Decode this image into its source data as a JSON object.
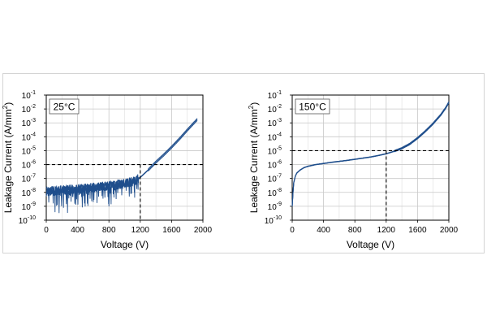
{
  "chart_data": [
    {
      "type": "line",
      "annotation": "25°C",
      "xlabel": "Voltage (V)",
      "ylabel_main": "Leakage Current (A/mm",
      "ylabel_sup": "2",
      "ylabel_end": ")",
      "xlim": [
        0,
        2000
      ],
      "ylim_exp": [
        -10,
        -1
      ],
      "log_y": true,
      "grid": true,
      "x_ticks": [
        "0",
        "400",
        "800",
        "1200",
        "1600",
        "2000"
      ],
      "y_ticks_base": "10",
      "y_ticks_exp": [
        "-10",
        "-9",
        "-8",
        "-7",
        "-6",
        "-5",
        "-4",
        "-3",
        "-2",
        "-1"
      ],
      "threshold": {
        "voltage": 1200,
        "current": 1e-06
      },
      "color": "#1f4e8c",
      "series": [
        {
          "x": [
            0,
            100,
            200,
            300,
            400,
            500,
            600,
            700,
            800,
            900,
            1000,
            1100,
            1150,
            1200,
            1300,
            1400,
            1500,
            1600,
            1700,
            1800,
            1900,
            1930
          ],
          "y": [
            1.2e-08,
            1.3e-08,
            1.5e-08,
            1.6e-08,
            1.8e-08,
            2e-08,
            2.2e-08,
            2.5e-08,
            3e-08,
            3.5e-08,
            4.5e-08,
            6e-08,
            8e-08,
            1.2e-07,
            4e-07,
            1.5e-06,
            5e-06,
            1.8e-05,
            7e-05,
            0.0003,
            0.0012,
            0.0018
          ]
        }
      ]
    },
    {
      "type": "line",
      "annotation": "150°C",
      "xlabel": "Voltage (V)",
      "ylabel_main": "Leakage Current (A/mm",
      "ylabel_sup": "2",
      "ylabel_end": ")",
      "xlim": [
        0,
        2000
      ],
      "ylim_exp": [
        -10,
        -1
      ],
      "log_y": true,
      "grid": true,
      "x_ticks": [
        "0",
        "400",
        "800",
        "1200",
        "1600",
        "2000"
      ],
      "y_ticks_base": "10",
      "y_ticks_exp": [
        "-10",
        "-9",
        "-8",
        "-7",
        "-6",
        "-5",
        "-4",
        "-3",
        "-2",
        "-1"
      ],
      "threshold": {
        "voltage": 1200,
        "current": 1e-05
      },
      "color": "#1f4e8c",
      "series": [
        {
          "x": [
            0,
            10,
            20,
            40,
            60,
            100,
            150,
            200,
            300,
            400,
            500,
            600,
            700,
            800,
            900,
            1000,
            1100,
            1200,
            1300,
            1400,
            1500,
            1600,
            1700,
            1800,
            1900,
            1960,
            2000
          ],
          "y": [
            1e-09,
            1e-08,
            5e-08,
            1.5e-07,
            2.5e-07,
            4e-07,
            6e-07,
            7.5e-07,
            1e-06,
            1.2e-06,
            1.45e-06,
            1.7e-06,
            2e-06,
            2.4e-06,
            2.9e-06,
            3.5e-06,
            4.5e-06,
            6e-06,
            9e-06,
            1.5e-05,
            3e-05,
            8e-05,
            0.00025,
            0.0009,
            0.004,
            0.012,
            0.03
          ]
        }
      ]
    }
  ]
}
